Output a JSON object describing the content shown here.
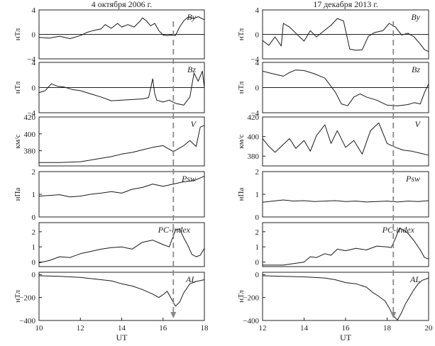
{
  "chart_data": [
    {
      "type": "line",
      "title": "4 октября 2006 г.",
      "xlabel": "UT",
      "xlim": [
        10,
        18
      ],
      "xticks": [
        "10",
        "12",
        "14",
        "16",
        "18"
      ],
      "marker_time": 16.5,
      "panels": [
        {
          "id": "By",
          "label": "By",
          "ylabel": "нТл",
          "ylim": [
            -4,
            4
          ],
          "yticks": [
            {
              "v": 4,
              "t": "4"
            },
            {
              "v": 0,
              "t": "0"
            },
            {
              "v": -4,
              "t": "−4"
            }
          ],
          "zero_line": true,
          "x": [
            10,
            10.5,
            11,
            11.5,
            12,
            12.3,
            12.6,
            13,
            13.2,
            13.5,
            13.8,
            14,
            14.3,
            14.6,
            14.9,
            15,
            15.2,
            15.4,
            15.6,
            15.8,
            16,
            16.2,
            16.4,
            16.6,
            16.8,
            17,
            17.2,
            17.5,
            17.7,
            18
          ],
          "values": [
            -0.5,
            -0.6,
            -0.3,
            -0.7,
            -0.2,
            0.3,
            0.6,
            0.9,
            1.6,
            1.0,
            1.8,
            1.2,
            1.6,
            1.2,
            2.2,
            2.7,
            2.2,
            1.4,
            1.8,
            0.6,
            -0.1,
            -0.2,
            -0.1,
            -0.2,
            1.2,
            2.2,
            2.8,
            2.6,
            2.9,
            2.4
          ]
        },
        {
          "id": "Bz",
          "label": "Bz",
          "ylabel": "нТл",
          "ylim": [
            -4,
            4
          ],
          "yticks": [
            {
              "v": 4,
              "t": "4"
            },
            {
              "v": 0,
              "t": "0"
            },
            {
              "v": -4,
              "t": "−4"
            }
          ],
          "zero_line": true,
          "x": [
            10,
            10.3,
            10.6,
            10.9,
            11.2,
            11.6,
            12,
            12.5,
            13,
            13.5,
            14,
            14.5,
            15,
            15.3,
            15.5,
            15.6,
            15.7,
            16,
            16.3,
            16.6,
            17,
            17.3,
            17.5,
            17.7,
            17.9,
            18
          ],
          "values": [
            -0.8,
            -0.5,
            0.6,
            0.2,
            0.1,
            -0.3,
            -0.5,
            -1.0,
            -1.5,
            -2.1,
            -2.0,
            -1.9,
            -1.8,
            -1.6,
            1.4,
            -1.0,
            -2.0,
            -2.3,
            -2.0,
            -2.5,
            -2.8,
            -1.5,
            2.3,
            1.0,
            2.6,
            0.0
          ]
        },
        {
          "id": "V",
          "label": "V",
          "ylabel": "км/с",
          "ylim": [
            362,
            420
          ],
          "yticks": [
            {
              "v": 420,
              "t": "420"
            },
            {
              "v": 400,
              "t": "400"
            },
            {
              "v": 380,
              "t": "380"
            }
          ],
          "zero_line": false,
          "x": [
            10,
            11,
            12,
            12.5,
            13,
            13.5,
            14,
            14.5,
            15,
            15.5,
            16,
            16.5,
            17,
            17.3,
            17.6,
            17.8,
            18
          ],
          "values": [
            366,
            366,
            367,
            369,
            371,
            373,
            376,
            378,
            381,
            384,
            386,
            379,
            386,
            392,
            385,
            408,
            410
          ]
        },
        {
          "id": "Psw",
          "label": "Psw",
          "ylabel": "нПа",
          "ylim": [
            0,
            2
          ],
          "yticks": [
            {
              "v": 2,
              "t": "2"
            },
            {
              "v": 1,
              "t": "1"
            },
            {
              "v": 0,
              "t": "0"
            }
          ],
          "zero_line": false,
          "x": [
            10,
            11,
            11.5,
            12,
            12.5,
            13,
            13.5,
            14,
            14.5,
            15,
            15.5,
            16,
            16.5,
            17,
            17.5,
            18
          ],
          "values": [
            0.92,
            0.98,
            0.88,
            0.92,
            1.0,
            1.05,
            1.12,
            1.05,
            1.22,
            1.3,
            1.45,
            1.35,
            1.45,
            1.55,
            1.6,
            1.8
          ]
        },
        {
          "id": "PC",
          "label": "PC-index",
          "ylabel": "",
          "ylim": [
            -0.3,
            2.6
          ],
          "yticks": [
            {
              "v": 2,
              "t": "2"
            },
            {
              "v": 1,
              "t": "1"
            },
            {
              "v": 0,
              "t": "0"
            }
          ],
          "zero_line": false,
          "x": [
            10,
            10.5,
            11,
            11.5,
            12,
            12.5,
            13,
            13.5,
            14,
            14.5,
            15,
            15.5,
            16,
            16.3,
            16.6,
            16.8,
            17,
            17.2,
            17.4,
            17.6,
            17.8,
            18
          ],
          "values": [
            -0.05,
            0.1,
            0.35,
            0.3,
            0.55,
            0.7,
            0.85,
            0.95,
            1.0,
            0.85,
            1.3,
            1.45,
            1.15,
            1.0,
            2.1,
            2.2,
            1.6,
            1.1,
            0.5,
            0.35,
            0.45,
            0.9
          ]
        },
        {
          "id": "AL",
          "label": "AL",
          "ylabel": "нТл",
          "ylim": [
            -400,
            20
          ],
          "yticks": [
            {
              "v": 0,
              "t": "0"
            },
            {
              "v": -200,
              "t": "−200"
            },
            {
              "v": -400,
              "t": "−400"
            }
          ],
          "zero_line": false,
          "x": [
            10,
            11,
            12,
            13,
            13.5,
            14,
            14.5,
            15,
            15.5,
            15.8,
            16,
            16.2,
            16.4,
            16.6,
            16.8,
            17,
            17.3,
            17.6,
            18
          ],
          "values": [
            -10,
            -15,
            -25,
            -45,
            -55,
            -80,
            -100,
            -130,
            -170,
            -200,
            -175,
            -145,
            -210,
            -275,
            -240,
            -160,
            -80,
            -60,
            -45
          ]
        }
      ]
    },
    {
      "type": "line",
      "title": "17 декабря 2013 г.",
      "xlabel": "UT",
      "xlim": [
        12,
        20
      ],
      "xticks": [
        "12",
        "14",
        "16",
        "18",
        "20"
      ],
      "marker_time": 18.3,
      "panels": [
        {
          "id": "By",
          "label": "By",
          "ylabel": "нТл",
          "ylim": [
            -4,
            4
          ],
          "yticks": [
            {
              "v": 4,
              "t": "4"
            },
            {
              "v": 0,
              "t": "0"
            },
            {
              "v": -4,
              "t": "−4"
            }
          ],
          "zero_line": true,
          "x": [
            12,
            12.3,
            12.6,
            12.9,
            13,
            13.3,
            13.6,
            14,
            14.3,
            14.6,
            15,
            15.3,
            15.6,
            15.9,
            16.2,
            16.5,
            16.8,
            17.1,
            17.4,
            17.8,
            18.1,
            18.4,
            18.7,
            19,
            19.3,
            19.6,
            19.8,
            20
          ],
          "values": [
            -1.0,
            -1.8,
            -0.4,
            -1.9,
            1.8,
            1.2,
            0.2,
            -1.1,
            0.6,
            -0.4,
            0.7,
            1.5,
            2.6,
            2.2,
            -2.4,
            -2.6,
            -2.5,
            -0.3,
            0.3,
            0.6,
            1.8,
            1.2,
            -0.1,
            0.2,
            -0.4,
            -1.6,
            -2.5,
            -2.8
          ]
        },
        {
          "id": "Bz",
          "label": "Bz",
          "ylabel": "нТл",
          "ylim": [
            -4,
            4
          ],
          "yticks": [
            {
              "v": 4,
              "t": "4"
            },
            {
              "v": 0,
              "t": "0"
            },
            {
              "v": -4,
              "t": "−4"
            }
          ],
          "zero_line": true,
          "x": [
            12,
            12.5,
            13,
            13.3,
            13.6,
            14,
            14.5,
            15,
            15.5,
            15.8,
            16.1,
            16.4,
            16.7,
            17,
            17.5,
            18,
            18.5,
            19,
            19.3,
            19.6,
            19.8,
            20
          ],
          "values": [
            2.6,
            2.2,
            1.8,
            2.4,
            2.8,
            2.7,
            2.2,
            1.5,
            -0.7,
            -2.6,
            -2.9,
            -1.5,
            -1.0,
            -1.5,
            -2.0,
            -2.8,
            -2.9,
            -2.7,
            -2.4,
            -2.6,
            -0.8,
            0.6
          ]
        },
        {
          "id": "V",
          "label": "V",
          "ylabel": "км/с",
          "ylim": [
            370,
            420
          ],
          "yticks": [
            {
              "v": 420,
              "t": "420"
            },
            {
              "v": 400,
              "t": "400"
            },
            {
              "v": 380,
              "t": "380"
            }
          ],
          "zero_line": false,
          "x": [
            12,
            12.3,
            12.6,
            13,
            13.3,
            13.6,
            14,
            14.3,
            14.6,
            15,
            15.3,
            15.6,
            16,
            16.4,
            16.8,
            17.2,
            17.6,
            18,
            18.4,
            18.8,
            19.2,
            19.6,
            20
          ],
          "values": [
            398,
            390,
            384,
            392,
            398,
            388,
            396,
            385,
            401,
            412,
            393,
            406,
            389,
            396,
            382,
            406,
            414,
            393,
            389,
            386,
            385,
            383,
            381
          ]
        },
        {
          "id": "Psw",
          "label": "Psw",
          "ylabel": "нПа",
          "ylim": [
            0,
            2
          ],
          "yticks": [
            {
              "v": 2,
              "t": "2"
            },
            {
              "v": 1,
              "t": "1"
            },
            {
              "v": 0,
              "t": "0"
            }
          ],
          "zero_line": false,
          "x": [
            12,
            12.5,
            13,
            13.5,
            14,
            14.5,
            15,
            15.5,
            16,
            16.5,
            17,
            17.5,
            18,
            18.5,
            19,
            19.5,
            20
          ],
          "values": [
            0.65,
            0.7,
            0.75,
            0.7,
            0.72,
            0.68,
            0.7,
            0.72,
            0.68,
            0.7,
            0.66,
            0.68,
            0.7,
            0.66,
            0.7,
            0.68,
            0.72
          ]
        },
        {
          "id": "PC",
          "label": "PC-index",
          "ylabel": "",
          "ylim": [
            -0.3,
            2.6
          ],
          "yticks": [
            {
              "v": 2,
              "t": "2"
            },
            {
              "v": 1,
              "t": "1"
            },
            {
              "v": 0,
              "t": "0"
            }
          ],
          "zero_line": false,
          "x": [
            12,
            12.5,
            13,
            13.5,
            14,
            14.3,
            14.6,
            15,
            15.3,
            15.6,
            16,
            16.5,
            17,
            17.5,
            18,
            18.2,
            18.4,
            18.6,
            18.8,
            19,
            19.3,
            19.6,
            19.8,
            20
          ],
          "values": [
            -0.2,
            -0.2,
            -0.2,
            -0.1,
            0.0,
            0.35,
            0.3,
            0.55,
            0.45,
            0.85,
            0.75,
            0.9,
            0.8,
            1.05,
            1.0,
            0.95,
            1.55,
            2.25,
            2.1,
            1.9,
            1.4,
            0.8,
            0.3,
            0.2
          ]
        },
        {
          "id": "AL",
          "label": "AL",
          "ylabel": "нТл",
          "ylim": [
            -400,
            20
          ],
          "yticks": [
            {
              "v": 0,
              "t": "0"
            },
            {
              "v": -200,
              "t": "−200"
            },
            {
              "v": -400,
              "t": "−400"
            }
          ],
          "zero_line": false,
          "x": [
            12,
            13,
            14,
            15,
            15.5,
            16,
            16.5,
            17,
            17.3,
            17.6,
            17.9,
            18.1,
            18.3,
            18.5,
            18.7,
            18.9,
            19.1,
            19.3,
            19.5,
            19.7,
            20
          ],
          "values": [
            -10,
            -15,
            -20,
            -30,
            -45,
            -70,
            -80,
            -110,
            -155,
            -190,
            -230,
            -290,
            -360,
            -395,
            -330,
            -250,
            -190,
            -130,
            -80,
            -50,
            -30
          ]
        }
      ]
    }
  ]
}
